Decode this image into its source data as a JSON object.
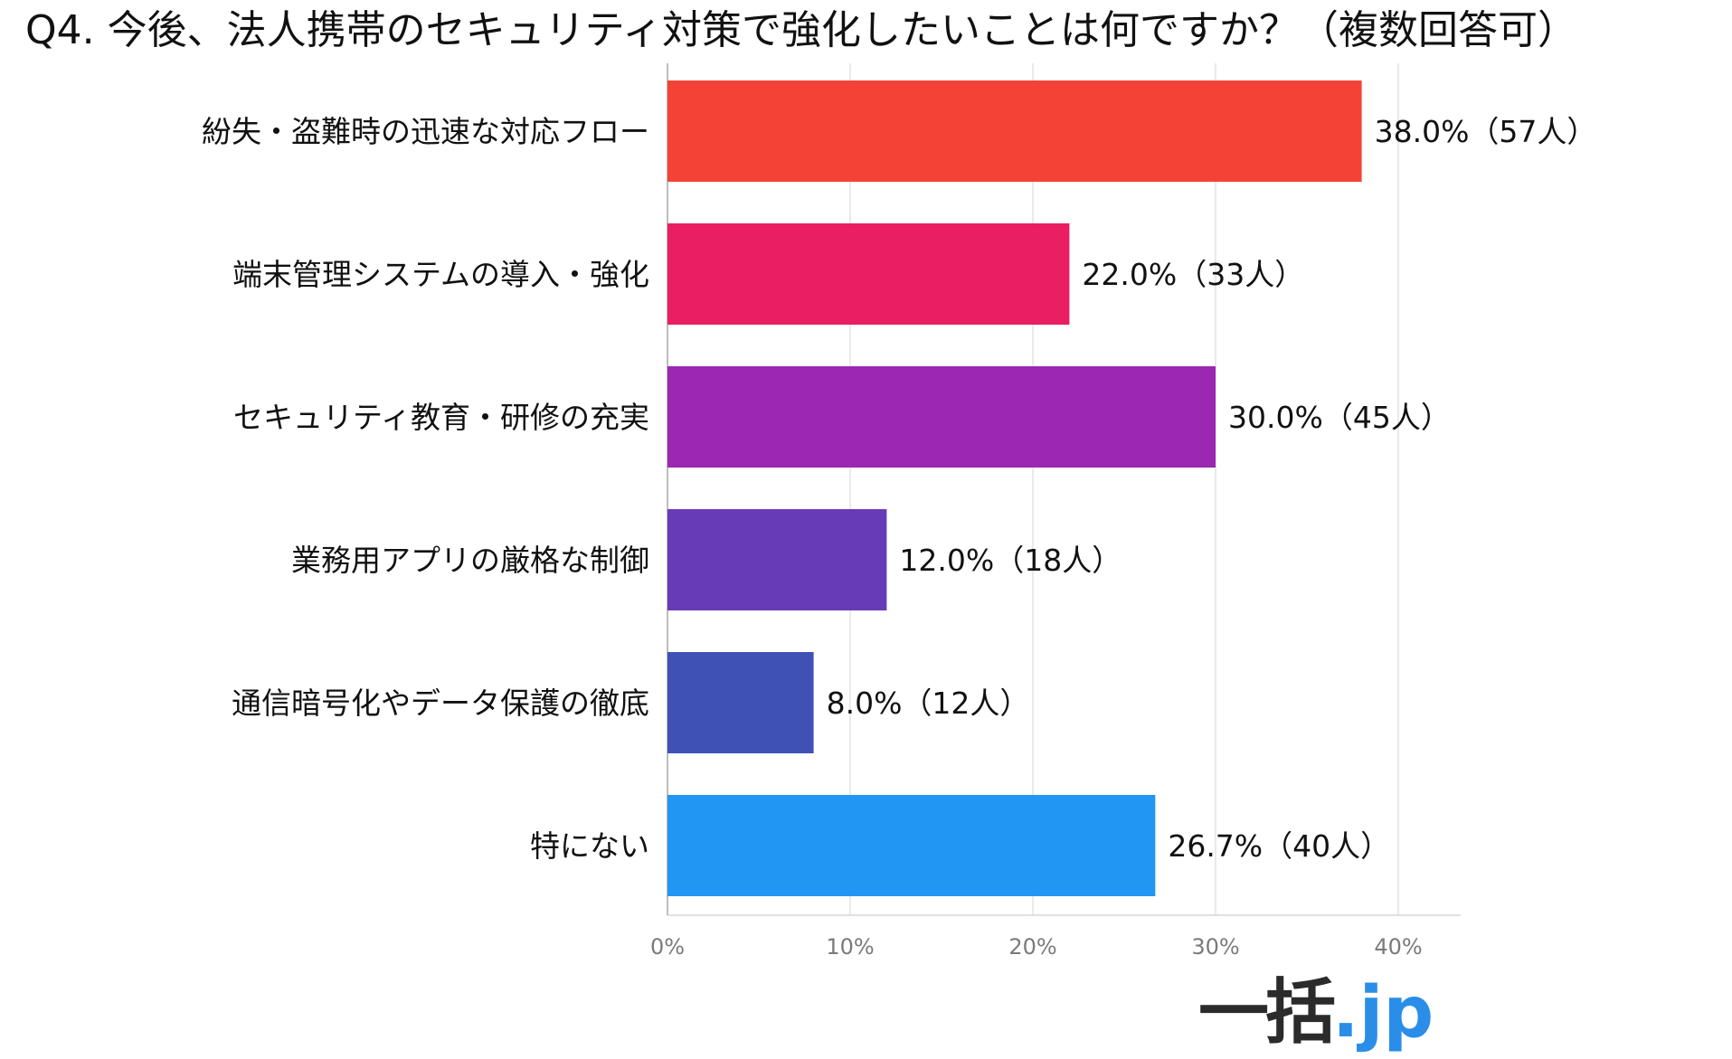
{
  "title": "Q4. 今後、法人携帯のセキュリティ対策で強化したいことは何ですか？（複数回答可）",
  "logo": {
    "main": "一括",
    "accent": ".jp"
  },
  "chart_data": {
    "type": "bar",
    "orientation": "horizontal",
    "categories": [
      "紛失・盗難時の迅速な対応フロー",
      "端末管理システムの導入・強化",
      "セキュリティ教育・研修の充実",
      "業務用アプリの厳格な制御",
      "通信暗号化やデータ保護の徹底",
      "特にない"
    ],
    "values": [
      38.0,
      22.0,
      30.0,
      12.0,
      8.0,
      26.7
    ],
    "data_labels": [
      "38.0%（57人）",
      "22.0%（33人）",
      "30.0%（45人）",
      "12.0%（18人）",
      "8.0%（12人）",
      "26.7%（40人）"
    ],
    "colors": [
      "#f44336",
      "#e91e63",
      "#9c27b0",
      "#673ab7",
      "#3f51b5",
      "#2196f3"
    ],
    "x_ticks": [
      "0%",
      "10%",
      "20%",
      "30%",
      "40%"
    ],
    "xlim": [
      0,
      44
    ],
    "grid": true,
    "legend": "none"
  }
}
